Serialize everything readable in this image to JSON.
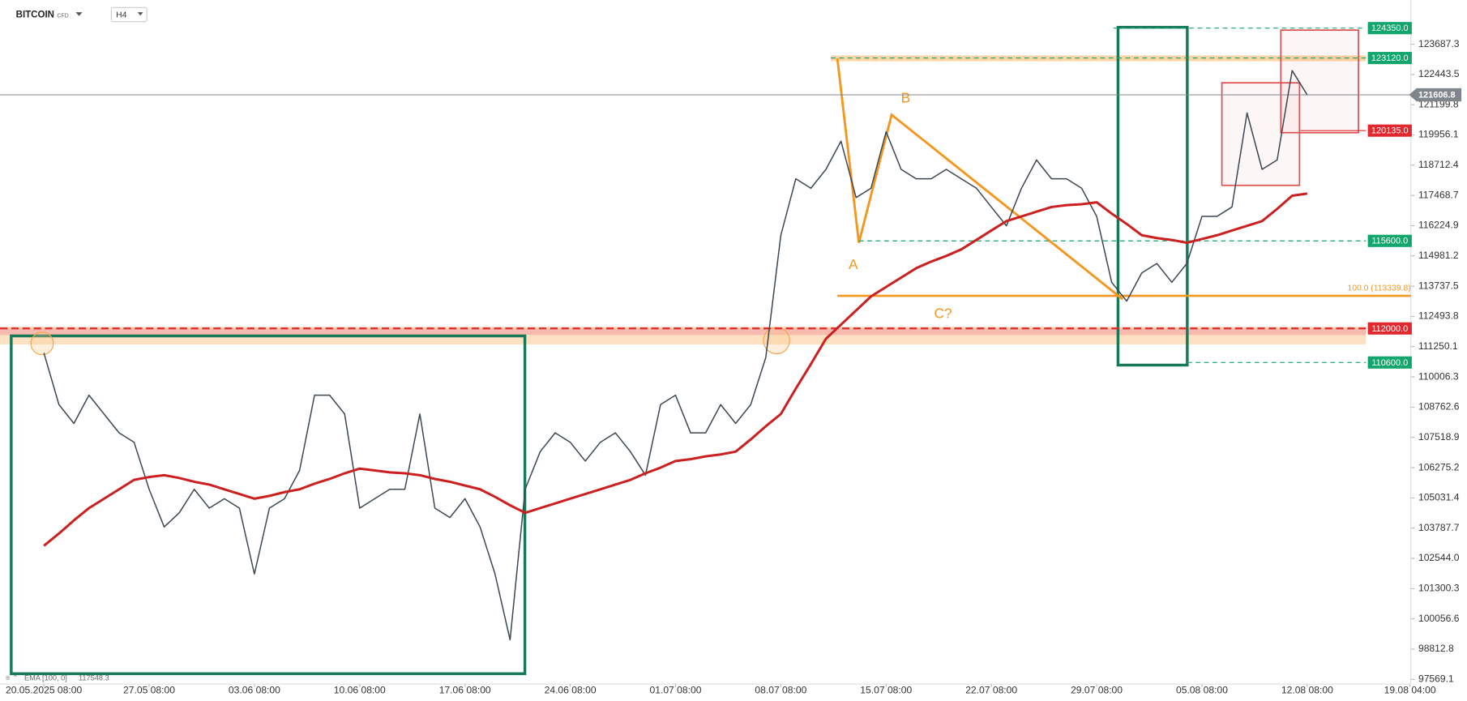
{
  "header": {
    "symbol": "BITCOIN",
    "kind": "CFD",
    "interval": "H4"
  },
  "annotations": [
    "A",
    "B",
    "C?"
  ],
  "chart_data": {
    "type": "line",
    "x": [
      "20.05 08:00",
      "21.05 08:00",
      "22.05 08:00",
      "23.05 08:00",
      "24.05 08:00",
      "25.05 08:00",
      "26.05 08:00",
      "27.05 08:00",
      "28.05 08:00",
      "29.05 08:00",
      "30.05 08:00",
      "31.05 08:00",
      "01.06 08:00",
      "02.06 08:00",
      "03.06 08:00",
      "04.06 08:00",
      "05.06 08:00",
      "06.06 08:00",
      "07.06 08:00",
      "08.06 08:00",
      "09.06 08:00",
      "10.06 08:00",
      "11.06 08:00",
      "12.06 08:00",
      "13.06 08:00",
      "14.06 08:00",
      "15.06 08:00",
      "16.06 08:00",
      "17.06 08:00",
      "18.06 08:00",
      "19.06 08:00",
      "20.06 08:00",
      "21.06 08:00",
      "22.06 08:00",
      "23.06 08:00",
      "24.06 08:00",
      "25.06 08:00",
      "26.06 08:00",
      "27.06 08:00",
      "28.06 08:00",
      "29.06 08:00",
      "30.06 08:00",
      "01.07 08:00",
      "02.07 08:00",
      "03.07 08:00",
      "04.07 08:00",
      "05.07 08:00",
      "06.07 08:00",
      "07.07 08:00",
      "08.07 08:00",
      "09.07 08:00",
      "10.07 08:00",
      "11.07 08:00",
      "12.07 08:00",
      "13.07 08:00",
      "14.07 08:00",
      "15.07 08:00",
      "16.07 08:00",
      "17.07 08:00",
      "18.07 08:00",
      "19.07 08:00",
      "20.07 08:00",
      "21.07 08:00",
      "22.07 08:00",
      "23.07 08:00",
      "24.07 08:00",
      "25.07 08:00",
      "26.07 08:00",
      "27.07 08:00",
      "28.07 08:00",
      "29.07 08:00",
      "30.07 08:00",
      "31.07 08:00",
      "01.08 08:00",
      "02.08 08:00",
      "03.08 08:00",
      "04.08 08:00",
      "05.08 08:00",
      "06.08 08:00",
      "07.08 08:00",
      "08.08 08:00",
      "09.08 08:00",
      "10.08 08:00",
      "11.08 08:00",
      "12.08 08:00"
    ],
    "series": [
      {
        "name": "BITCOIN",
        "color": "#3b4753",
        "values": [
          110996,
          108868,
          108094,
          109254,
          108481,
          107707,
          107320,
          105385,
          103837,
          104418,
          105385,
          104611,
          104998,
          104611,
          101903,
          104611,
          104998,
          106159,
          109254,
          109254,
          108481,
          104611,
          104998,
          105385,
          105385,
          108481,
          104611,
          104224,
          104998,
          103837,
          101903,
          99194,
          105385,
          106933,
          107707,
          107320,
          106546,
          107320,
          107707,
          106933,
          105965,
          108868,
          109254,
          107707,
          107707,
          108868,
          108094,
          108868,
          110802,
          115832,
          118154,
          117767,
          118541,
          119702,
          117380,
          117767,
          120089,
          118541,
          118154,
          118154,
          118541,
          118154,
          117767,
          116993,
          116219,
          117767,
          118928,
          118154,
          118154,
          117767,
          116606,
          113898,
          113124,
          114285,
          114672,
          113898,
          114672,
          116606,
          116606,
          116993,
          120863,
          118541,
          118928,
          122604,
          121606.8
        ]
      },
      {
        "name": "EMA [100, 0]",
        "color": "#cc1f1f",
        "values": [
          103063,
          103566,
          104108,
          104611,
          104998,
          105385,
          105772,
          105888,
          105965,
          105849,
          105694,
          105578,
          105385,
          105191,
          104998,
          105114,
          105269,
          105385,
          105617,
          105810,
          106043,
          106236,
          106159,
          106081,
          106043,
          105965,
          105810,
          105694,
          105540,
          105385,
          105075,
          104727,
          104417,
          104611,
          104804,
          104998,
          105191,
          105385,
          105578,
          105772,
          106043,
          106275,
          106546,
          106623,
          106739,
          106816,
          106933,
          107436,
          107977,
          108480,
          109525,
          110531,
          111576,
          112156,
          112737,
          113317,
          113704,
          114091,
          114478,
          114749,
          114981,
          115252,
          115639,
          116026,
          116413,
          116606,
          116799,
          116993,
          117070,
          117109,
          117186,
          116722,
          116296,
          115832,
          115716,
          115639,
          115523,
          115677,
          115832,
          116026,
          116219,
          116413,
          116916,
          117457,
          117548.3
        ]
      }
    ],
    "xlim": [
      "17.05 10:00",
      "18.08 10:00"
    ],
    "xticks": [
      "20.05.2025 08:00",
      "27.05 08:00",
      "03.06 08:00",
      "10.06 08:00",
      "17.06 08:00",
      "24.06 08:00",
      "01.07 08:00",
      "08.07 08:00",
      "15.07 08:00",
      "22.07 08:00",
      "29.07 08:00",
      "05.08 08:00",
      "12.08 08:00",
      "19.08 04:00"
    ],
    "ylim": [
      97375.6,
      125505.9
    ],
    "yticks": [
      123687.3,
      122443.5,
      121199.8,
      119956.1,
      118712.4,
      117468.7,
      116224.9,
      114981.2,
      113737.5,
      112493.8,
      111250.1,
      110006.3,
      108762.6,
      107518.9,
      106275.2,
      105031.4,
      103787.7,
      {
        "value": 102544,
        "label": "102544.0"
      },
      101300.3,
      100056.6,
      98812.8,
      97569.1
    ],
    "levels": [
      {
        "value": 124350,
        "label": "124350.0",
        "color": "#12a56c",
        "dashed": true,
        "boxed": true
      },
      {
        "value": 123120,
        "label": "123120.0",
        "color": "#12a56c",
        "dashed": true,
        "boxed": true
      },
      {
        "value": 121606.8,
        "label": "121606.8",
        "color": "#80868c",
        "dashed": false,
        "boxed": true
      },
      {
        "value": 120135,
        "label": "120135.0",
        "color": "#e0282e",
        "dashed": false,
        "boxed": true
      },
      {
        "value": 115600,
        "label": "115600.0",
        "color": "#12a56c",
        "dashed": true,
        "boxed": true
      },
      {
        "value": 113339.8,
        "label": "100.0 (113339.8)",
        "color": "#f5961e",
        "dashed": false,
        "boxed": false
      },
      {
        "value": 112000,
        "label": "112000.0",
        "color": "#e0282e",
        "dashed": true,
        "boxed": true
      },
      {
        "value": 110600,
        "label": "110600.0",
        "color": "#12a56c",
        "dashed": true,
        "boxed": true
      }
    ]
  }
}
